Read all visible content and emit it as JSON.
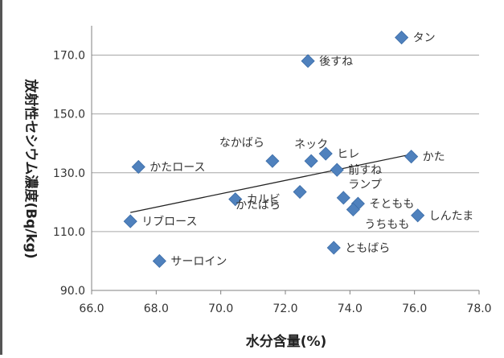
{
  "chart_data": {
    "type": "scatter",
    "xlabel": "水分含量(%)",
    "ylabel": "放射性セシウム濃度(Bq/kg)",
    "xlim": [
      66.0,
      78.0
    ],
    "ylim": [
      90.0,
      180.0
    ],
    "xticks": [
      "66.0",
      "68.0",
      "70.0",
      "72.0",
      "74.0",
      "76.0",
      "78.0"
    ],
    "yticks": [
      "90.0",
      "110.0",
      "130.0",
      "150.0",
      "170.0"
    ],
    "xtick_values": [
      66,
      68,
      70,
      72,
      74,
      76,
      78
    ],
    "ytick_values": [
      90,
      110,
      130,
      150,
      170
    ],
    "grid": "horizontal",
    "marker_color": "#4f81bd",
    "trendline": {
      "type": "linear",
      "x": [
        67.2,
        76.0
      ],
      "y": [
        116.5,
        136.5
      ]
    },
    "points": [
      {
        "label": "タン",
        "x": 75.6,
        "y": 176.0,
        "label_pos": "right"
      },
      {
        "label": "後すね",
        "x": 72.7,
        "y": 168.0,
        "label_pos": "right"
      },
      {
        "label": "ネック",
        "x": 72.8,
        "y": 134.0,
        "label_pos": "above"
      },
      {
        "label": "ヒレ",
        "x": 73.25,
        "y": 136.5,
        "label_pos": "right"
      },
      {
        "label": "なかばら",
        "x": 71.6,
        "y": 134.0,
        "label_pos": "above-left"
      },
      {
        "label": "かた",
        "x": 75.9,
        "y": 135.5,
        "label_pos": "right"
      },
      {
        "label": "前すね",
        "x": 73.6,
        "y": 131.0,
        "label_pos": "right"
      },
      {
        "label": "かたロース",
        "x": 67.45,
        "y": 132.0,
        "label_pos": "right"
      },
      {
        "label": "ランプ",
        "x": 73.8,
        "y": 121.5,
        "label_pos": "upper-right"
      },
      {
        "label": "カルビ",
        "x": 70.45,
        "y": 121.0,
        "label_pos": "right"
      },
      {
        "label": "かたばら",
        "x": 72.45,
        "y": 123.5,
        "label_pos": "below-left"
      },
      {
        "label": "そともも",
        "x": 74.25,
        "y": 119.5,
        "label_pos": "right"
      },
      {
        "label": "うちもも",
        "x": 74.1,
        "y": 117.5,
        "label_pos": "below"
      },
      {
        "label": "しんたま",
        "x": 76.1,
        "y": 115.5,
        "label_pos": "right"
      },
      {
        "label": "リブロース",
        "x": 67.2,
        "y": 113.5,
        "label_pos": "right"
      },
      {
        "label": "ともばら",
        "x": 73.5,
        "y": 104.5,
        "label_pos": "right"
      },
      {
        "label": "サーロイン",
        "x": 68.1,
        "y": 100.0,
        "label_pos": "right"
      }
    ]
  }
}
